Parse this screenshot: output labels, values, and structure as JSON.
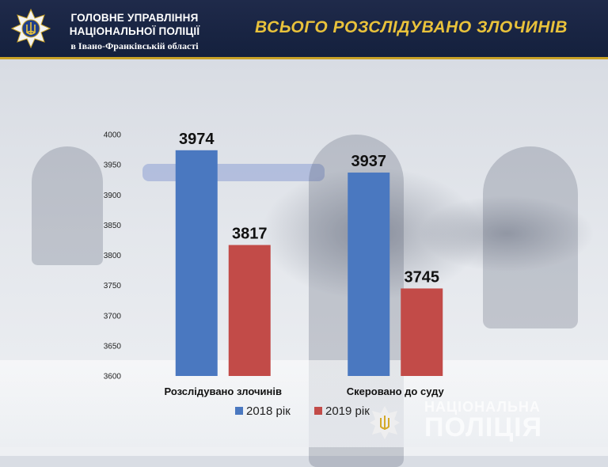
{
  "header": {
    "org_line1": "ГОЛОВНЕ УПРАВЛІННЯ",
    "org_line2": "НАЦІОНАЛЬНОЇ ПОЛІЦІЇ",
    "org_line3": "в Івано-Франківській області",
    "title": "ВСЬОГО РОЗСЛІДУВАНО ЗЛОЧИНІВ"
  },
  "watermark": {
    "line1": "НАЦІОНАЛЬНА",
    "line2": "ПОЛІЦІЯ"
  },
  "colors": {
    "header_bg": "#1f2a4a",
    "title": "#e9c23b",
    "series_2018": "#4a78c0",
    "series_2019": "#c24b48"
  },
  "icons": {
    "badge": "police-star-badge-icon",
    "emblem": "trident-emblem-icon"
  },
  "chart_data": {
    "type": "bar",
    "categories": [
      "Розслідувано злочинів",
      "Скеровано до суду"
    ],
    "series": [
      {
        "name": "2018 рік",
        "values": [
          3974,
          3937
        ],
        "color": "#4a78c0"
      },
      {
        "name": "2019 рік",
        "values": [
          3817,
          3745
        ],
        "color": "#c24b48"
      }
    ],
    "ylim": [
      3600,
      4000
    ],
    "yticks": [
      3600,
      3650,
      3700,
      3750,
      3800,
      3850,
      3900,
      3950,
      4000
    ],
    "legend": "bottom",
    "grid": false
  }
}
